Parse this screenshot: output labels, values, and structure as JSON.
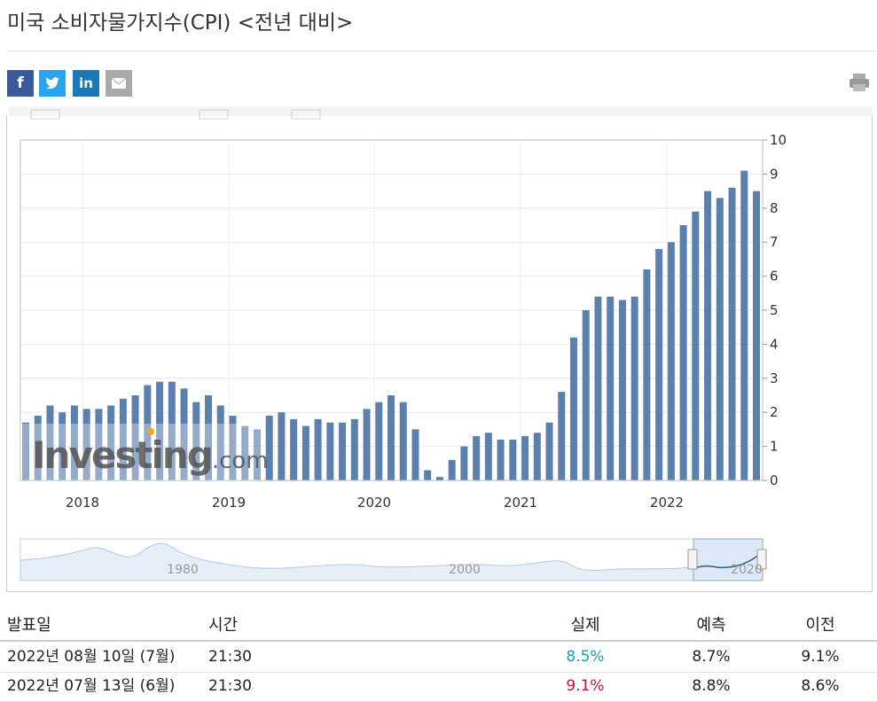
{
  "header": {
    "title": "미국 소비자물가지수(CPI) <전년 대비>",
    "share": [
      "f",
      "in"
    ]
  },
  "chart_data": {
    "type": "bar",
    "color": "#5b80ad",
    "values": [
      1.7,
      1.9,
      2.2,
      2.0,
      2.2,
      2.1,
      2.1,
      2.2,
      2.4,
      2.5,
      2.8,
      2.9,
      2.9,
      2.7,
      2.3,
      2.5,
      2.2,
      1.9,
      1.6,
      1.5,
      1.9,
      2.0,
      1.8,
      1.6,
      1.8,
      1.7,
      1.7,
      1.8,
      2.1,
      2.3,
      2.5,
      2.3,
      1.5,
      0.3,
      0.1,
      0.6,
      1.0,
      1.3,
      1.4,
      1.2,
      1.2,
      1.3,
      1.4,
      1.7,
      2.6,
      4.2,
      5.0,
      5.4,
      5.4,
      5.3,
      5.4,
      6.2,
      6.8,
      7.0,
      7.5,
      7.9,
      8.5,
      8.3,
      8.6,
      9.1,
      8.5
    ],
    "ylim": [
      0,
      10
    ],
    "yticks": [
      0,
      1,
      2,
      3,
      4,
      5,
      6,
      7,
      8,
      9,
      10
    ],
    "grid": true,
    "x_labels": [
      "2018",
      "2019",
      "2020",
      "2021",
      "2022"
    ],
    "watermark": [
      "Investing",
      ".com"
    ],
    "navigator_labels": [
      "1980",
      "2000",
      "2020"
    ]
  },
  "table": {
    "header": [
      "발표일",
      "시간",
      "실제",
      "예측",
      "이전"
    ],
    "rows": [
      [
        "2022년 08월 10일 (7월)",
        "21:30",
        "8.5%",
        "8.7%",
        "9.1%"
      ],
      [
        "2022년 07월 13일 (6월)",
        "21:30",
        "9.1%",
        "8.8%",
        "8.6%"
      ]
    ],
    "actual_colors": [
      "#1b9bb2",
      "#c8102e"
    ]
  }
}
